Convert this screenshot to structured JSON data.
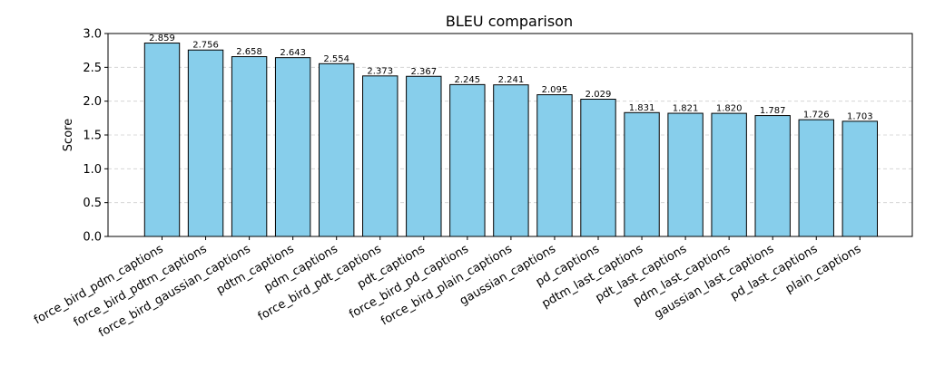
{
  "chart_data": {
    "type": "bar",
    "title": "BLEU comparison",
    "xlabel": "",
    "ylabel": "Score",
    "ylim": [
      0,
      3.0
    ],
    "yticks": [
      "0.0",
      "0.5",
      "1.0",
      "1.5",
      "2.0",
      "2.5",
      "3.0"
    ],
    "grid": "y-dashed",
    "bar_color": "#87CEEB",
    "edge_color": "#000000",
    "categories": [
      "force_bird_pdm_captions",
      "force_bird_pdtm_captions",
      "force_bird_gaussian_captions",
      "pdtm_captions",
      "pdm_captions",
      "force_bird_pdt_captions",
      "pdt_captions",
      "force_bird_pd_captions",
      "force_bird_plain_captions",
      "gaussian_captions",
      "pd_captions",
      "pdtm_last_captions",
      "pdt_last_captions",
      "pdm_last_captions",
      "gaussian_last_captions",
      "pd_last_captions",
      "plain_captions"
    ],
    "values": [
      2.859,
      2.756,
      2.658,
      2.643,
      2.554,
      2.373,
      2.367,
      2.245,
      2.241,
      2.095,
      2.029,
      1.831,
      1.821,
      1.82,
      1.787,
      1.726,
      1.703
    ],
    "value_labels": [
      "2.859",
      "2.756",
      "2.658",
      "2.643",
      "2.554",
      "2.373",
      "2.367",
      "2.245",
      "2.241",
      "2.095",
      "2.029",
      "1.831",
      "1.821",
      "1.820",
      "1.787",
      "1.726",
      "1.703"
    ]
  }
}
